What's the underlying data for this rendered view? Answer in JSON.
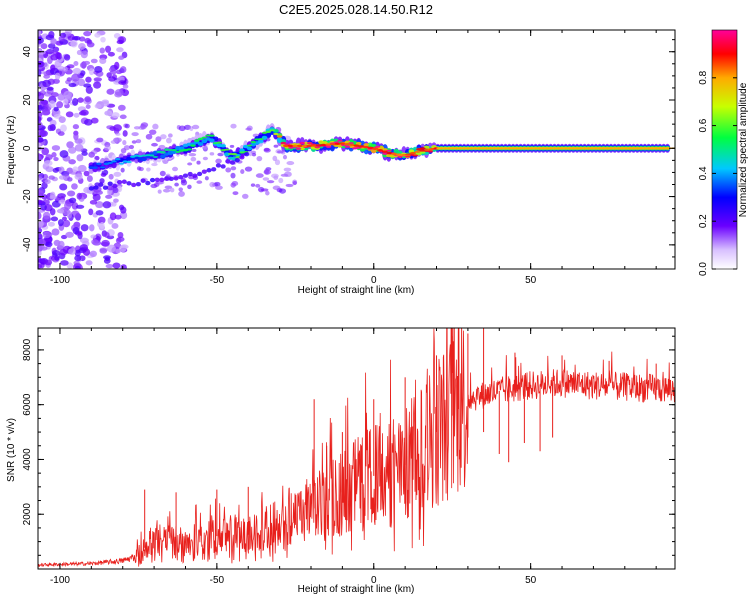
{
  "title": "C2E5.2025.028.14.50.R12",
  "colors": {
    "snr_line": "#e8201c",
    "axis": "#000000",
    "background": "#ffffff"
  },
  "chart_data": [
    {
      "type": "heatmap",
      "name": "spectrogram",
      "xlabel": "Height of straight line (km)",
      "ylabel": "Frequency (Hz)",
      "xlim": [
        -107,
        96
      ],
      "ylim": [
        -50,
        49
      ],
      "xticks": [
        -100,
        -50,
        0,
        50
      ],
      "yticks": [
        -40,
        -20,
        0,
        20,
        40
      ],
      "xtick_labels": [
        "-100",
        "-50",
        "0",
        "50"
      ],
      "ytick_labels": [
        "-40",
        "-20",
        "0",
        "20",
        "40"
      ],
      "colormap": [
        "#ffffff",
        "#6a00ff",
        "#0000ff",
        "#00c8ff",
        "#00ff00",
        "#ffff00",
        "#ff0000",
        "#ff0099"
      ],
      "signal_ridge": [
        {
          "x": -90,
          "f": -8,
          "amp": 0.25
        },
        {
          "x": -80,
          "f": -5,
          "amp": 0.3
        },
        {
          "x": -70,
          "f": -3,
          "amp": 0.35
        },
        {
          "x": -60,
          "f": 0,
          "amp": 0.4
        },
        {
          "x": -52,
          "f": 5,
          "amp": 0.4
        },
        {
          "x": -45,
          "f": -4,
          "amp": 0.45
        },
        {
          "x": -38,
          "f": 2,
          "amp": 0.4
        },
        {
          "x": -32,
          "f": 8,
          "amp": 0.45
        },
        {
          "x": -28,
          "f": 1,
          "amp": 0.75
        },
        {
          "x": -20,
          "f": 1,
          "amp": 0.7
        },
        {
          "x": -10,
          "f": 2,
          "amp": 0.75
        },
        {
          "x": 0,
          "f": 0,
          "amp": 0.8
        },
        {
          "x": 5,
          "f": -2,
          "amp": 0.75
        },
        {
          "x": 10,
          "f": -3,
          "amp": 0.7
        },
        {
          "x": 15,
          "f": -1,
          "amp": 0.65
        },
        {
          "x": 20,
          "f": 0,
          "amp": 0.7
        },
        {
          "x": 94,
          "f": 0,
          "amp": 0.75
        }
      ],
      "secondary_branch": [
        {
          "x": -90,
          "f": -16
        },
        {
          "x": -75,
          "f": -14
        },
        {
          "x": -60,
          "f": -12
        },
        {
          "x": -50,
          "f": -8
        },
        {
          "x": -40,
          "f": -3
        }
      ]
    },
    {
      "type": "line",
      "name": "snr",
      "xlabel": "Height of straight line (km)",
      "ylabel": "SNR (10 * v/v)",
      "xlim": [
        -107,
        96
      ],
      "ylim": [
        0,
        8800
      ],
      "xticks": [
        -100,
        -50,
        0,
        50
      ],
      "yticks": [
        2000,
        4000,
        6000,
        8000
      ],
      "xtick_labels": [
        "-100",
        "-50",
        "0",
        "50"
      ],
      "ytick_labels": [
        "2000",
        "4000",
        "6000",
        "8000"
      ],
      "trend": {
        "x": [
          -107,
          -90,
          -80,
          -76,
          -70,
          -60,
          -50,
          -40,
          -30,
          -22,
          -15,
          -10,
          -5,
          0,
          5,
          10,
          15,
          20,
          25,
          30,
          40,
          50,
          60,
          70,
          80,
          96
        ],
        "y": [
          150,
          200,
          300,
          450,
          1100,
          1000,
          1200,
          1250,
          1500,
          2000,
          2500,
          2800,
          3200,
          3400,
          3600,
          3800,
          4400,
          5000,
          5600,
          6200,
          6500,
          6700,
          6800,
          6700,
          6650,
          6550
        ]
      },
      "spikes": [
        {
          "x": -73,
          "y": 2900
        },
        {
          "x": -63,
          "y": 2800
        },
        {
          "x": -50,
          "y": 2900
        },
        {
          "x": -40,
          "y": 3000
        },
        {
          "x": -19,
          "y": 6200
        },
        {
          "x": -15,
          "y": 4500
        },
        {
          "x": -10,
          "y": 5000
        },
        {
          "x": 0,
          "y": 6200
        },
        {
          "x": 10,
          "y": 7000
        },
        {
          "x": 20,
          "y": 7800
        },
        {
          "x": 25,
          "y": 8500
        },
        {
          "x": 27,
          "y": 8700
        },
        {
          "x": 30,
          "y": 8600
        },
        {
          "x": 35,
          "y": 8800
        },
        {
          "x": 45,
          "y": 7900
        },
        {
          "x": 60,
          "y": 7800
        },
        {
          "x": 75,
          "y": 7600
        },
        {
          "x": 90,
          "y": 7500
        }
      ],
      "dips": [
        {
          "x": 40,
          "y": 4200
        },
        {
          "x": 43,
          "y": 3900
        },
        {
          "x": 48,
          "y": 4600
        },
        {
          "x": 53,
          "y": 4300
        },
        {
          "x": 57,
          "y": 4800
        },
        {
          "x": 30,
          "y": 4800
        },
        {
          "x": 35,
          "y": 5000
        }
      ]
    }
  ],
  "colorbar": {
    "label": "Normalized spectral amplitude",
    "ticks": [
      "0.0",
      "0.2",
      "0.4",
      "0.6",
      "0.8"
    ],
    "tick_values": [
      0.0,
      0.2,
      0.4,
      0.6,
      0.8
    ],
    "range": [
      0,
      1
    ]
  }
}
